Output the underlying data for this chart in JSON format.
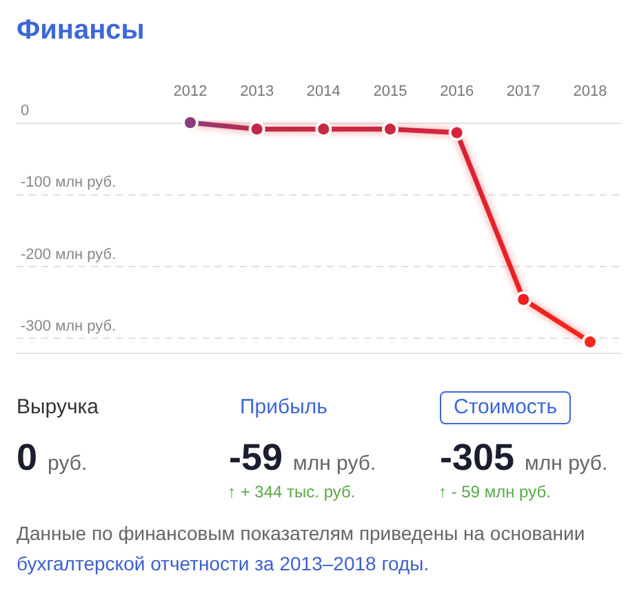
{
  "chart_data": [
    {
      "type": "line",
      "title": "Финансы",
      "categories": [
        "2012",
        "2013",
        "2014",
        "2015",
        "2016",
        "2017",
        "2018"
      ],
      "values": [
        0,
        -9,
        -9,
        -9,
        -14,
        -246,
        -305
      ],
      "colors": [
        "#8a3d7f",
        "#c02a44",
        "#c62a42",
        "#cb2940",
        "#d6243a",
        "#ee2020",
        "#f5281c"
      ],
      "ylim": [
        -320,
        0
      ],
      "yticks": [
        0,
        {
          "value": -100,
          "label": "-100 млн руб."
        },
        {
          "value": -200,
          "label": "-200 млн руб."
        },
        {
          "value": -300,
          "label": "-300 млн руб."
        }
      ],
      "grid": "y",
      "marker": "circle",
      "line_style": "solid"
    },
    {
      "type": "other",
      "annotations": [
        "Выручка",
        "0 руб.",
        "Прибыль",
        "-59 млн руб.",
        "↑ + 344 тыс. руб.",
        "Стоимость",
        "-305 млн руб.",
        "↑ - 59 млн руб.",
        "Данные по финансовым показателям приведены на основании",
        "бухгалтерской отчетности за 2013–2018 годы."
      ]
    }
  ]
}
